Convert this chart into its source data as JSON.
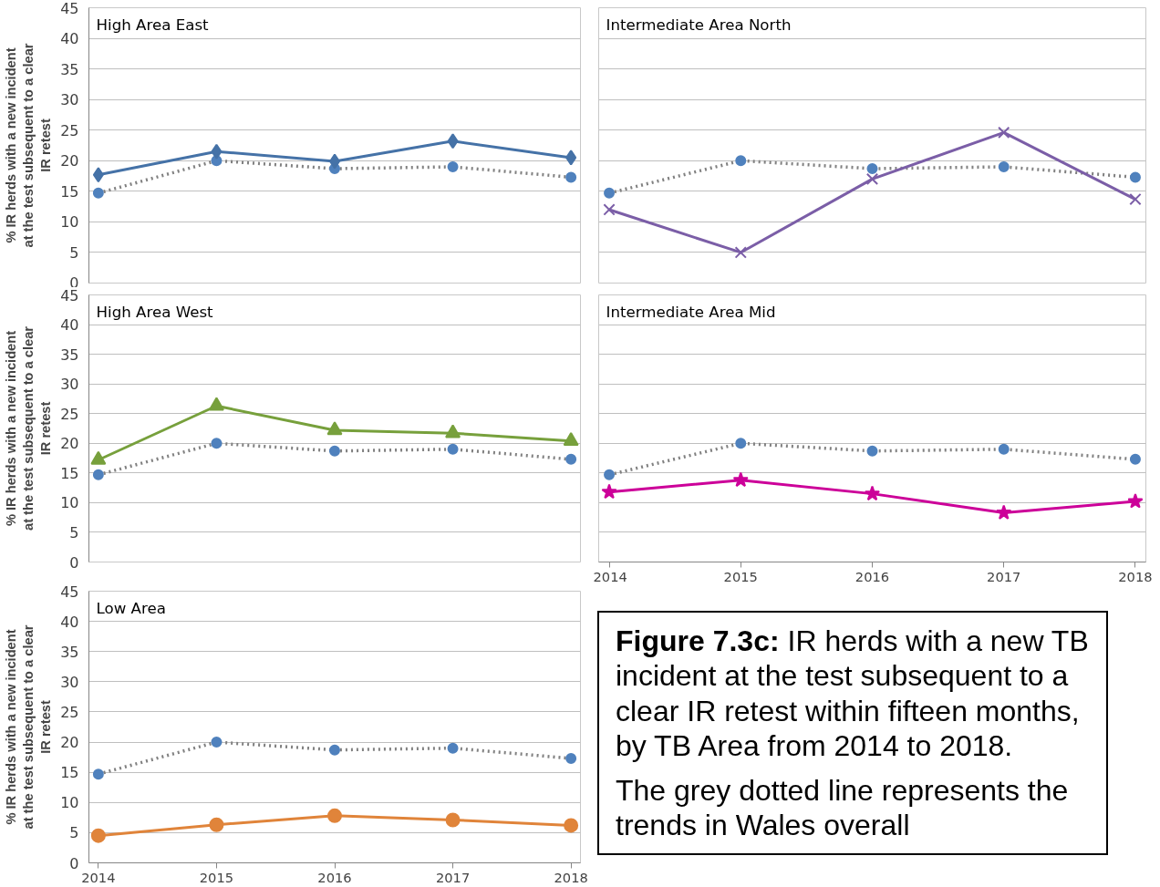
{
  "chart_data": [
    {
      "type": "line",
      "title": "High Area East",
      "ylabel": "% IR herds with a new incident\nat the test subsequent to a clear\nIR retest",
      "categories": [
        "2014",
        "2015",
        "2016",
        "2017",
        "2018"
      ],
      "ylim": [
        0,
        45
      ],
      "yticks": [
        0,
        5,
        10,
        15,
        20,
        25,
        30,
        35,
        40,
        45
      ],
      "grid": "y",
      "tick_labels": "y",
      "series": [
        {
          "color": "#808080",
          "colors": [
            "#4f81bd",
            "#4f81bd",
            "#4f81bd",
            "#4f81bd",
            "#4f81bd"
          ],
          "line_style": "dotted",
          "marker": "circle",
          "values": [
            14.7,
            20.0,
            18.7,
            19.0,
            17.3
          ]
        },
        {
          "color": "#4572a7",
          "line_style": "solid",
          "marker": "diamond",
          "values": [
            17.7,
            21.5,
            19.9,
            23.2,
            20.5
          ]
        }
      ]
    },
    {
      "type": "line",
      "title": "Intermediate Area North",
      "categories": [
        "2014",
        "2015",
        "2016",
        "2017",
        "2018"
      ],
      "ylim": [
        0,
        45
      ],
      "yticks": [
        0,
        5,
        10,
        15,
        20,
        25,
        30,
        35,
        40,
        45
      ],
      "grid": "y",
      "tick_labels": false,
      "series": [
        {
          "color": "#808080",
          "colors": [
            "#4f81bd",
            "#4f81bd",
            "#4f81bd",
            "#4f81bd",
            "#4f81bd"
          ],
          "line_style": "dotted",
          "marker": "circle",
          "values": [
            14.7,
            20.0,
            18.7,
            19.0,
            17.3
          ]
        },
        {
          "color": "#7b5ea7",
          "line_style": "solid",
          "marker": "cross",
          "values": [
            12.0,
            5.0,
            17.0,
            24.6,
            13.7
          ]
        }
      ]
    },
    {
      "type": "line",
      "title": "High Area West",
      "ylabel": "% IR herds with a new incident\nat the test subsequent to a clear\nIR retest",
      "categories": [
        "2014",
        "2015",
        "2016",
        "2017",
        "2018"
      ],
      "ylim": [
        0,
        45
      ],
      "yticks": [
        0,
        5,
        10,
        15,
        20,
        25,
        30,
        35,
        40,
        45
      ],
      "grid": "y",
      "tick_labels": "y",
      "series": [
        {
          "color": "#808080",
          "colors": [
            "#4f81bd",
            "#4f81bd",
            "#4f81bd",
            "#4f81bd",
            "#4f81bd"
          ],
          "line_style": "dotted",
          "marker": "circle",
          "values": [
            14.7,
            20.0,
            18.7,
            19.0,
            17.3
          ]
        },
        {
          "color": "#77a03c",
          "line_style": "solid",
          "marker": "triangle",
          "values": [
            17.2,
            26.3,
            22.2,
            21.7,
            20.4
          ]
        }
      ]
    },
    {
      "type": "line",
      "title": "Intermediate Area Mid",
      "categories": [
        "2014",
        "2015",
        "2016",
        "2017",
        "2018"
      ],
      "ylim": [
        0,
        45
      ],
      "yticks": [
        0,
        5,
        10,
        15,
        20,
        25,
        30,
        35,
        40,
        45
      ],
      "grid": "y",
      "tick_labels": "x",
      "series": [
        {
          "color": "#808080",
          "colors": [
            "#4f81bd",
            "#4f81bd",
            "#4f81bd",
            "#4f81bd",
            "#4f81bd"
          ],
          "line_style": "dotted",
          "marker": "circle",
          "values": [
            14.7,
            20.0,
            18.7,
            19.0,
            17.3
          ]
        },
        {
          "color": "#cc0099",
          "line_style": "solid",
          "marker": "star",
          "values": [
            11.8,
            13.8,
            11.5,
            8.3,
            10.2
          ]
        }
      ]
    },
    {
      "type": "line",
      "title": "Low Area",
      "ylabel": "% IR herds with a new incident\nat the test subsequent to a clear\nIR retest",
      "categories": [
        "2014",
        "2015",
        "2016",
        "2017",
        "2018"
      ],
      "ylim": [
        0,
        45
      ],
      "yticks": [
        0,
        5,
        10,
        15,
        20,
        25,
        30,
        35,
        40,
        45
      ],
      "grid": "y",
      "series": [
        {
          "color": "#808080",
          "colors": [
            "#4f81bd",
            "#4f81bd",
            "#4f81bd",
            "#4f81bd",
            "#4f81bd"
          ],
          "line_style": "dotted",
          "marker": "circle",
          "values": [
            14.7,
            20.0,
            18.7,
            19.0,
            17.3
          ]
        },
        {
          "color": "#e0843a",
          "line_style": "solid",
          "marker": "circle",
          "values": [
            4.5,
            6.3,
            7.8,
            7.1,
            6.2
          ]
        }
      ]
    },
    {
      "type": "other",
      "title": "Figure 7.3c:",
      "subtitle": "IR herds with a new TB incident at the test subsequent to a clear IR retest within fifteen months, by TB Area from 2014 to 2018.",
      "annotations": [
        "The grey dotted line represents the trends in Wales overall"
      ]
    }
  ]
}
